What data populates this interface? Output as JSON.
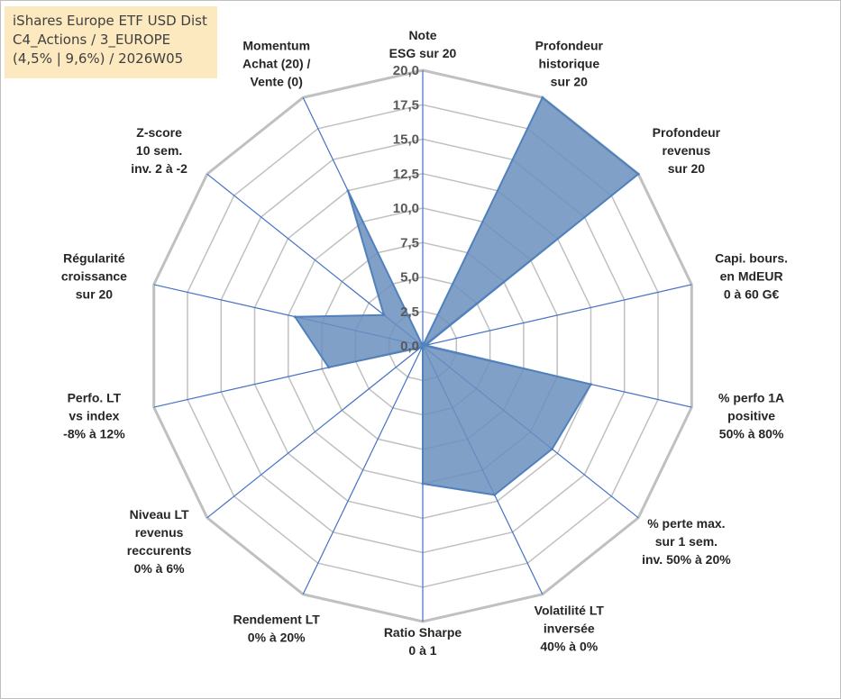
{
  "header": {
    "lines": [
      "iShares Europe ETF USD Dist",
      "C4_Actions / 3_EUROPE",
      "(4,5% | 9,6%) / 2026W05"
    ]
  },
  "chart_data": {
    "type": "radar",
    "title": "",
    "rmin": 0,
    "rmax": 20,
    "ticks": [
      "0,0",
      "2,5",
      "5,0",
      "7,5",
      "10,0",
      "12,5",
      "15,0",
      "17,5",
      "20,0"
    ],
    "tick_values": [
      0,
      2.5,
      5,
      7.5,
      10,
      12.5,
      15,
      17.5,
      20
    ],
    "axes": [
      {
        "label": [
          "Note",
          "ESG sur 20"
        ]
      },
      {
        "label": [
          "Profondeur",
          "historique",
          "sur 20"
        ]
      },
      {
        "label": [
          "Profondeur",
          "revenus",
          "sur 20"
        ]
      },
      {
        "label": [
          "Capi. bours.",
          "en MdEUR",
          "0 à 60 G€"
        ]
      },
      {
        "label": [
          "% perfo 1A",
          "positive",
          "50% à 80%"
        ]
      },
      {
        "label": [
          "% perte max.",
          "sur 1 sem.",
          "inv. 50% à 20%"
        ]
      },
      {
        "label": [
          "Volatilité LT",
          "inversée",
          "40% à 0%"
        ]
      },
      {
        "label": [
          "Ratio Sharpe",
          "0 à 1"
        ]
      },
      {
        "label": [
          "Rendement LT",
          "0% à 20%"
        ]
      },
      {
        "label": [
          "Niveau LT",
          "revenus",
          "reccurents",
          "0% à 6%"
        ]
      },
      {
        "label": [
          "Perfo. LT",
          "vs index",
          "-8% à 12%"
        ]
      },
      {
        "label": [
          "Régularité",
          "croissance",
          "sur 20"
        ]
      },
      {
        "label": [
          "Z-score",
          "10 sem.",
          "inv. 2 à -2"
        ]
      },
      {
        "label": [
          "Momentum",
          "Achat (20) /",
          "Vente (0)"
        ]
      }
    ],
    "series": [
      {
        "values": [
          0,
          20,
          20,
          0.2,
          12.5,
          12,
          12,
          10,
          0,
          0.2,
          7,
          9.5,
          3.6,
          12.5
        ],
        "color": "#4f81bd",
        "fill": "#6a8fbe",
        "fill_opacity": 0.85
      }
    ],
    "grid": true,
    "grid_color": "#c0c0c0",
    "spoke_color": "#4472c4",
    "legend": "none"
  }
}
